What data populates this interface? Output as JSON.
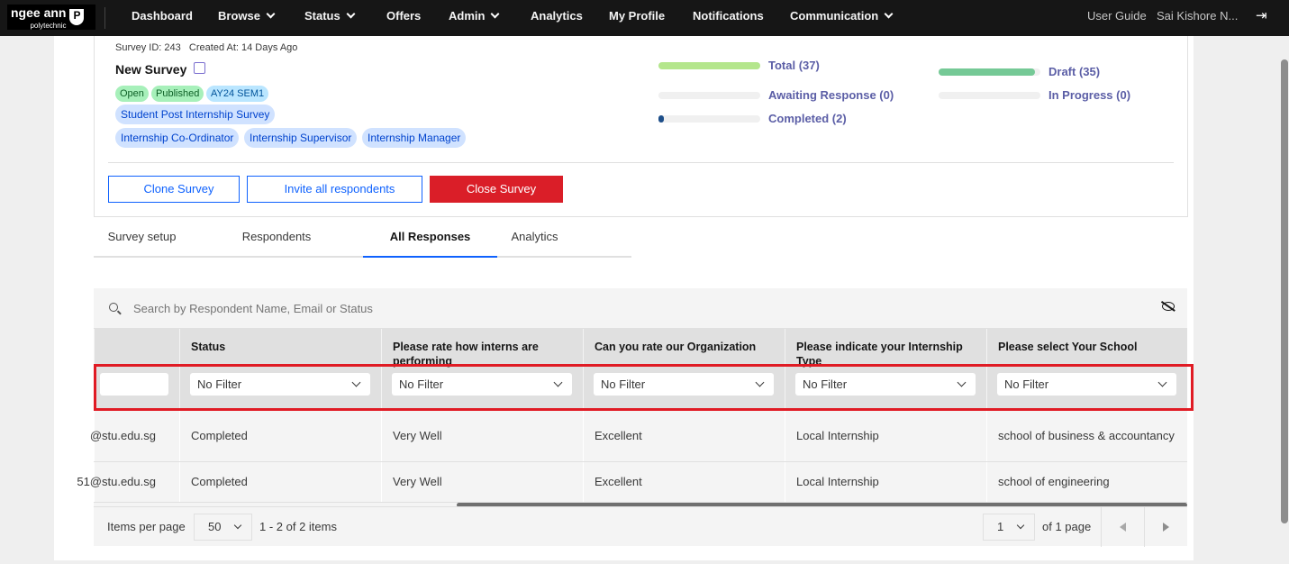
{
  "nav": {
    "logo_main": "ngee ann",
    "logo_sub": "polytechnic",
    "items": [
      {
        "label": "Dashboard",
        "dropdown": false
      },
      {
        "label": "Browse",
        "dropdown": true
      },
      {
        "label": "Status",
        "dropdown": true
      },
      {
        "label": "Offers",
        "dropdown": false
      },
      {
        "label": "Admin",
        "dropdown": true
      },
      {
        "label": "Analytics",
        "dropdown": false
      },
      {
        "label": "My Profile",
        "dropdown": false
      },
      {
        "label": "Notifications",
        "dropdown": false
      },
      {
        "label": "Communication",
        "dropdown": true
      }
    ],
    "user_guide": "User Guide",
    "user_name": "Sai Kishore N...",
    "logout_icon": "logout-icon"
  },
  "survey": {
    "meta": "Survey ID: 243   Created At: 14 Days Ago",
    "title": "New Survey",
    "status_tags": [
      "Open",
      "Published",
      "AY24 SEM1"
    ],
    "type_tag": "Student Post Internship Survey",
    "role_tags": [
      "Internship Co-Ordinator",
      "Internship Supervisor",
      "Internship Manager"
    ],
    "stats": [
      {
        "label": "Total (37)",
        "percent": 100,
        "color": "#b4e68c"
      },
      {
        "label": "Awaiting Response (0)",
        "percent": 0,
        "color": "#cccccc"
      },
      {
        "label": "Completed (2)",
        "percent": 5,
        "color": "#1d4e89"
      },
      {
        "label": "Draft (35)",
        "percent": 95,
        "color": "#75c996"
      },
      {
        "label": "In Progress (0)",
        "percent": 0,
        "color": "#cccccc"
      }
    ],
    "buttons": {
      "clone": "Clone Survey",
      "invite": "Invite all respondents",
      "close": "Close Survey"
    }
  },
  "tabs": [
    {
      "label": "Survey setup"
    },
    {
      "label": "Respondents"
    },
    {
      "label": "All Responses",
      "active": true
    },
    {
      "label": "Analytics"
    }
  ],
  "table": {
    "search_placeholder": "Search by Respondent Name, Email or Status",
    "columns": [
      "",
      "Status",
      "Please rate how interns are performing",
      "Can you rate our Organization",
      "Please indicate your Internship Type",
      "Please select Your School"
    ],
    "filter_value": "No Filter",
    "rows": [
      [
        "@stu.edu.sg",
        "Completed",
        "Very Well",
        "Excellent",
        "Local Internship",
        "school of business & accountancy"
      ],
      [
        "51@stu.edu.sg",
        "Completed",
        "Very Well",
        "Excellent",
        "Local Internship",
        "school of engineering"
      ]
    ],
    "footer": {
      "items_per_page_label": "Items per page",
      "items_per_page": "50",
      "range": "1 - 2 of 2 items",
      "page": "1",
      "of_pages": "of 1 page"
    }
  }
}
